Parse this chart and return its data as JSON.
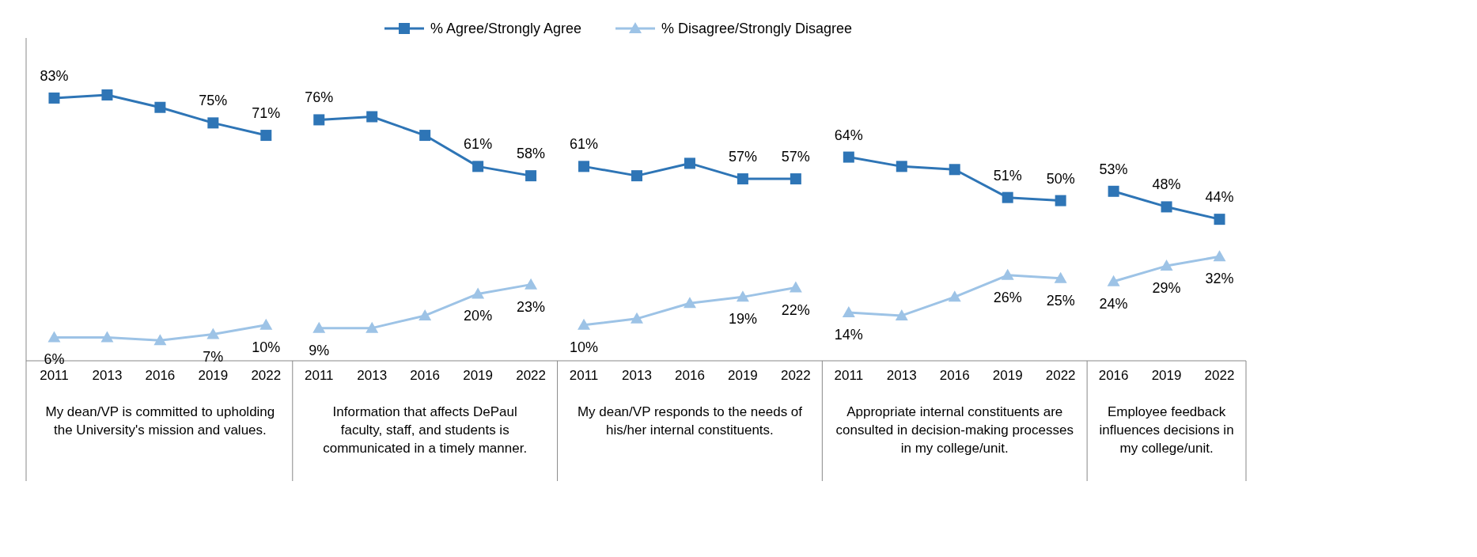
{
  "chart_data": {
    "type": "line",
    "categories": [
      "2011",
      "2013",
      "2016",
      "2019",
      "2022",
      "2011",
      "2013",
      "2016",
      "2019",
      "2022",
      "2011",
      "2013",
      "2016",
      "2019",
      "2022",
      "2011",
      "2013",
      "2016",
      "2019",
      "2022",
      "2016",
      "2019",
      "2022"
    ],
    "series": [
      {
        "name": "% Agree/Strongly Agree",
        "color": "#2e75b6",
        "marker": "square",
        "values": [
          83,
          84,
          80,
          75,
          71,
          76,
          77,
          71,
          61,
          58,
          61,
          58,
          62,
          57,
          57,
          64,
          61,
          60,
          51,
          50,
          53,
          48,
          44
        ],
        "value_labels": [
          "83%",
          null,
          null,
          "75%",
          "71%",
          "76%",
          null,
          null,
          "61%",
          "58%",
          "61%",
          null,
          null,
          "57%",
          "57%",
          "64%",
          null,
          null,
          "51%",
          "50%",
          "53%",
          "48%",
          "44%"
        ]
      },
      {
        "name": "% Disagree/Strongly Disagree",
        "color": "#9dc3e6",
        "marker": "triangle",
        "values": [
          6,
          6,
          5,
          7,
          10,
          9,
          9,
          13,
          20,
          23,
          10,
          12,
          17,
          19,
          22,
          14,
          13,
          19,
          26,
          25,
          24,
          29,
          32
        ],
        "value_labels": [
          "6%",
          null,
          null,
          "7%",
          "10%",
          "9%",
          null,
          null,
          "20%",
          "23%",
          "10%",
          null,
          null,
          "19%",
          "22%",
          "14%",
          null,
          null,
          "26%",
          "25%",
          "24%",
          "29%",
          "32%"
        ]
      }
    ],
    "annotations": [
      "My dean/VP  is committed to upholding the University's mission and values.",
      "Information that affects DePaul faculty, staff, and students is communicated in a timely manner.",
      "My dean/VP responds to the needs of his/her internal constituents.",
      "Appropriate internal constituents are consulted in decision-making processes in my college/unit.",
      "Employee feedback influences decisions in my college/unit."
    ],
    "legend": "top",
    "tick_labels": "x",
    "line_style": "solid"
  }
}
